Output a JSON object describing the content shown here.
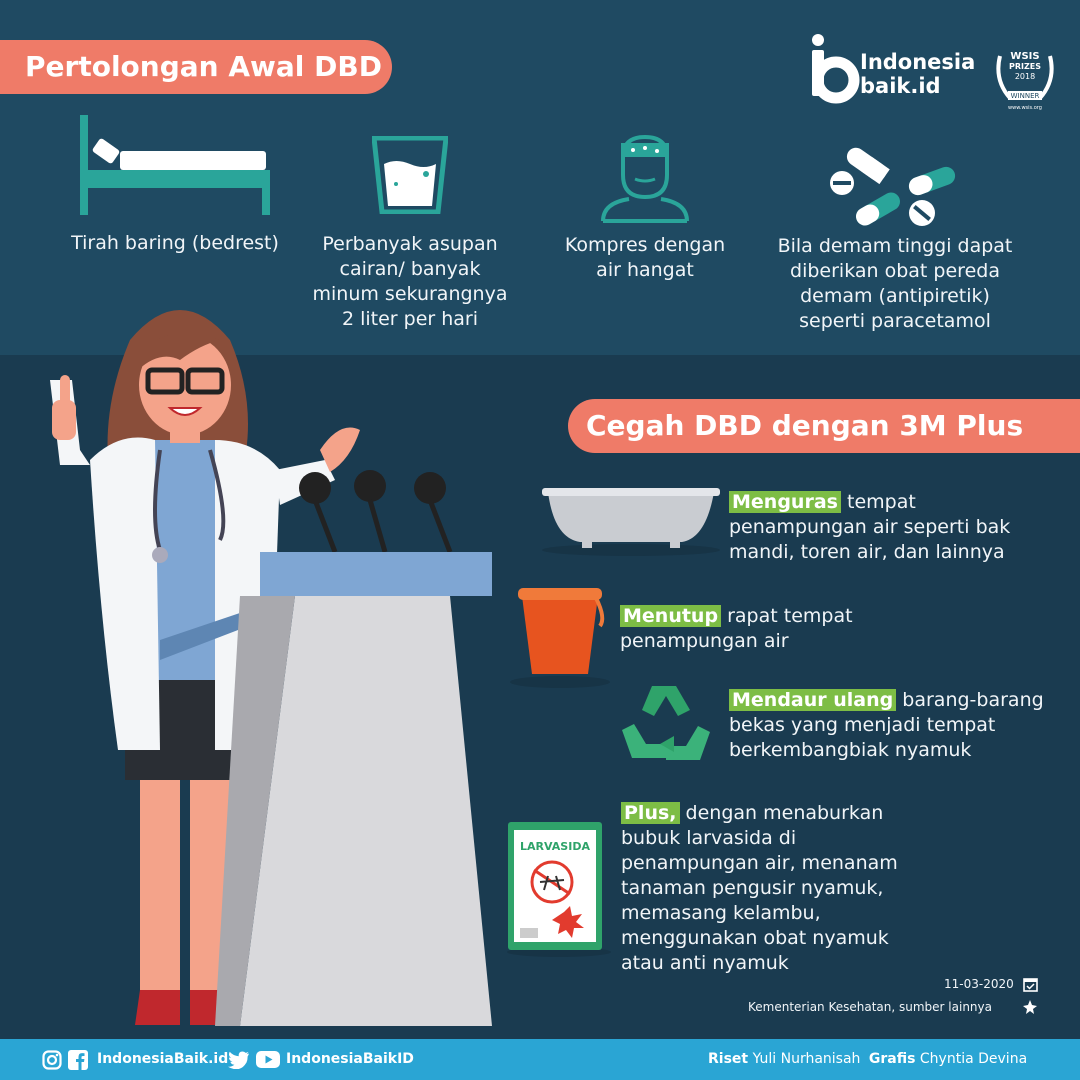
{
  "header": {
    "title": "Pertolongan Awal DBD",
    "brand_line1": "Indonesia",
    "brand_line2": "baik.id",
    "prize_line1": "WSIS",
    "prize_line2": "PRIZES",
    "prize_year": "2018",
    "prize_line3": "WINNER",
    "prize_url": "www.wsis.org"
  },
  "first_aid": [
    {
      "icon": "bed-icon",
      "label": "Tirah baring (bedrest)"
    },
    {
      "icon": "water-glass-icon",
      "label": "Perbanyak asupan\ncairan/ banyak\nminum sekurangnya\n2 liter per hari"
    },
    {
      "icon": "compress-head-icon",
      "label": "Kompres dengan\nair hangat"
    },
    {
      "icon": "pills-icon",
      "label": "Bila demam tinggi dapat\ndiberikan obat pereda\ndemam (antipiretik)\nseperti paracetamol"
    }
  ],
  "prevention": {
    "title": "Cegah DBD dengan 3M Plus",
    "steps": [
      {
        "icon": "bathtub-icon",
        "highlight": "Menguras",
        "text": " tempat\npenampungan air seperti bak\nmandi, toren air, dan lainnya"
      },
      {
        "icon": "bucket-icon",
        "highlight": "Menutup",
        "text": " rapat tempat\npenampungan air"
      },
      {
        "icon": "recycle-icon",
        "highlight": "Mendaur ulang",
        "text": " barang-barang\nbekas yang menjadi tempat\nberkembangbiak nyamuk"
      },
      {
        "icon": "larvicide-pack-icon",
        "highlight": "Plus,",
        "text": " dengan menaburkan\nbubuk larvasida di\npenampungan air, menanam\ntanaman pengusir nyamuk,\nmemasang kelambu,\nmenggunakan obat nyamuk\natau anti nyamuk"
      }
    ],
    "larvicide_label": "LARVASIDA"
  },
  "meta": {
    "date": "11-03-2020",
    "source": "Kementerian Kesehatan, sumber lainnya"
  },
  "footer": {
    "web_handle": "IndonesiaBaik.id",
    "social_handle": "IndonesiaBaikID",
    "research_label": "Riset",
    "research_name": "Yuli Nurhanisah",
    "graphics_label": "Grafis",
    "graphics_name": "Chyntia Devina"
  },
  "colors": {
    "background_top": "#1f4a62",
    "background_bottom": "#1a3b50",
    "banner": "#ef7b68",
    "highlight": "#7dbd45",
    "footer": "#2aa5d4"
  }
}
